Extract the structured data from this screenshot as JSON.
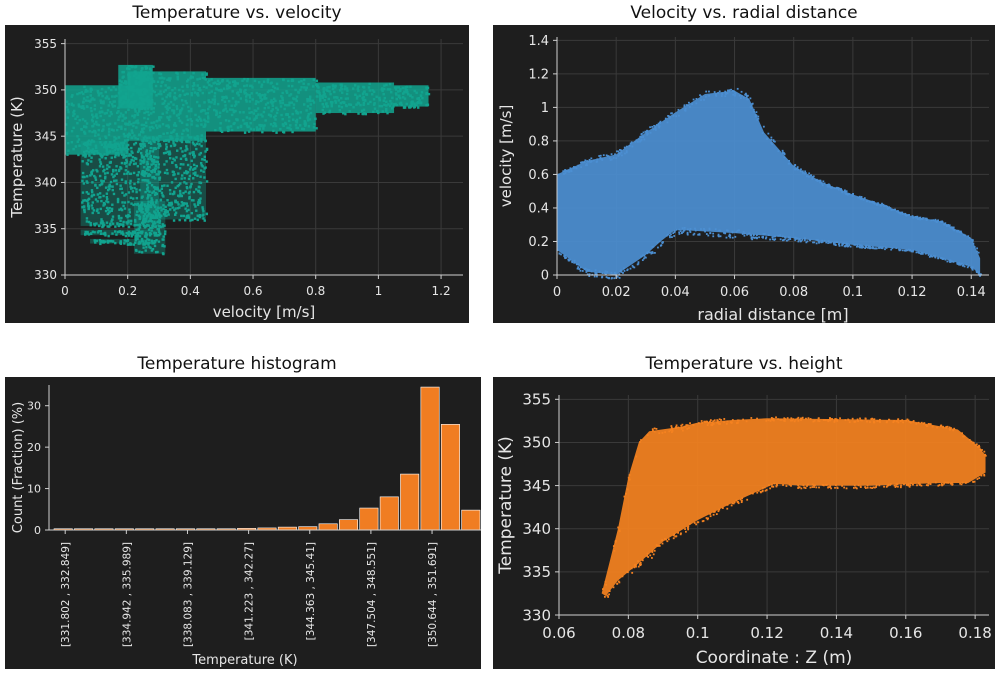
{
  "chart_data": [
    {
      "type": "scatter",
      "title": "Temperature vs. velocity",
      "xlabel": "velocity [m/s]",
      "ylabel": "Temperature (K)",
      "xlim": [
        0,
        1.27
      ],
      "ylim": [
        330,
        355.5
      ],
      "xticks": [
        0,
        0.2,
        0.4,
        0.6,
        0.8,
        1,
        1.2
      ],
      "xtick_labels": [
        "0",
        "0.2",
        "0.4",
        "0.6",
        "0.8",
        "1",
        "1.2"
      ],
      "yticks": [
        330,
        335,
        340,
        345,
        350,
        355
      ],
      "ytick_labels": [
        "330",
        "335",
        "340",
        "345",
        "350",
        "355"
      ],
      "grid": true,
      "series": [
        {
          "color": "#12a48f",
          "regions": [
            {
              "x": [
                0.0,
                0.2
              ],
              "y": [
                343,
                350.5
              ]
            },
            {
              "x": [
                0.17,
                0.28
              ],
              "y": [
                348,
                352.7
              ]
            },
            {
              "x": [
                0.2,
                0.45
              ],
              "y": [
                344.5,
                352
              ]
            },
            {
              "x": [
                0.45,
                0.8
              ],
              "y": [
                345.5,
                351.3
              ]
            },
            {
              "x": [
                0.8,
                1.05
              ],
              "y": [
                347.5,
                350.8
              ]
            },
            {
              "x": [
                1.05,
                1.16
              ],
              "y": [
                348.2,
                350.5
              ]
            },
            {
              "x": [
                0.24,
                0.45
              ],
              "y": [
                336,
                345
              ]
            },
            {
              "x": [
                0.22,
                0.32
              ],
              "y": [
                332.3,
                338
              ]
            },
            {
              "x": [
                0.05,
                0.3
              ],
              "y": [
                336,
                344.5
              ]
            },
            {
              "x": [
                0.05,
                0.3
              ],
              "y": [
                335.3,
                336
              ]
            },
            {
              "x": [
                0.05,
                0.3
              ],
              "y": [
                334.3,
                334.9
              ]
            },
            {
              "x": [
                0.08,
                0.28
              ],
              "y": [
                333.4,
                333.9
              ]
            }
          ]
        }
      ]
    },
    {
      "type": "scatter",
      "title": "Velocity vs. radial distance",
      "xlabel": "radial distance [m]",
      "ylabel": "velocity [m/s]",
      "xlim": [
        0,
        0.146
      ],
      "ylim": [
        0,
        1.42
      ],
      "xticks": [
        0,
        0.02,
        0.04,
        0.06,
        0.08,
        0.1,
        0.12,
        0.14
      ],
      "xtick_labels": [
        "0",
        "0.02",
        "0.04",
        "0.06",
        "0.08",
        "0.1",
        "0.12",
        "0.14"
      ],
      "yticks": [
        0,
        0.2,
        0.4,
        0.6,
        0.8,
        1,
        1.2,
        1.4
      ],
      "ytick_labels": [
        "0",
        "0.2",
        "0.4",
        "0.6",
        "0.8",
        "1",
        "1.2",
        "1.4"
      ],
      "grid": true,
      "series": [
        {
          "color": "#4c8fd2",
          "upper_envelope": [
            [
              0,
              0.6
            ],
            [
              0.01,
              0.68
            ],
            [
              0.02,
              0.72
            ],
            [
              0.03,
              0.85
            ],
            [
              0.04,
              0.97
            ],
            [
              0.05,
              1.08
            ],
            [
              0.06,
              1.1
            ],
            [
              0.065,
              1.05
            ],
            [
              0.07,
              0.85
            ],
            [
              0.08,
              0.65
            ],
            [
              0.09,
              0.55
            ],
            [
              0.1,
              0.48
            ],
            [
              0.11,
              0.42
            ],
            [
              0.12,
              0.35
            ],
            [
              0.13,
              0.32
            ],
            [
              0.14,
              0.22
            ],
            [
              0.143,
              0.1
            ]
          ],
          "lower_envelope": [
            [
              0,
              0.15
            ],
            [
              0.01,
              0.02
            ],
            [
              0.02,
              0.0
            ],
            [
              0.03,
              0.12
            ],
            [
              0.035,
              0.2
            ],
            [
              0.04,
              0.27
            ],
            [
              0.06,
              0.25
            ],
            [
              0.08,
              0.22
            ],
            [
              0.1,
              0.18
            ],
            [
              0.12,
              0.15
            ],
            [
              0.14,
              0.05
            ],
            [
              0.143,
              0
            ]
          ]
        }
      ]
    },
    {
      "type": "bar",
      "title": "Temperature histogram",
      "xlabel": "Temperature (K)",
      "ylabel": "Count (Fraction) (%)",
      "ylim": [
        0,
        35
      ],
      "yticks": [
        0,
        10,
        20,
        30
      ],
      "ytick_labels": [
        "0",
        "10",
        "20",
        "30"
      ],
      "category_labels": [
        "[331.802 , 332.849]",
        "[334.942 , 335.989]",
        "[338.083 , 339.129]",
        "[341.223 , 342.27]",
        "[344.363 , 345.41]",
        "[347.504 , 348.551]",
        "[350.644 , 351.691]"
      ],
      "values": [
        0.3,
        0.3,
        0.3,
        0.3,
        0.3,
        0.3,
        0.3,
        0.3,
        0.3,
        0.4,
        0.5,
        0.7,
        0.8,
        1.5,
        2.5,
        5.3,
        8.0,
        13.5,
        34.5,
        25.5,
        4.8
      ],
      "color": "#f07d22"
    },
    {
      "type": "scatter",
      "title": "Temperature vs. height",
      "xlabel": "Coordinate : Z (m)",
      "ylabel": "Temperature (K)",
      "xlim": [
        0.06,
        0.184
      ],
      "ylim": [
        330,
        355.5
      ],
      "xticks": [
        0.06,
        0.08,
        0.1,
        0.12,
        0.14,
        0.16,
        0.18
      ],
      "xtick_labels": [
        "0.06",
        "0.08",
        "0.1",
        "0.12",
        "0.14",
        "0.16",
        "0.18"
      ],
      "yticks": [
        330,
        335,
        340,
        345,
        350,
        355
      ],
      "ytick_labels": [
        "330",
        "335",
        "340",
        "345",
        "350",
        "355"
      ],
      "grid": true,
      "series": [
        {
          "color": "#f58220",
          "upper_envelope": [
            [
              0.0723,
              332.5
            ],
            [
              0.0745,
              336
            ],
            [
              0.077,
              340
            ],
            [
              0.08,
              346
            ],
            [
              0.083,
              350
            ],
            [
              0.086,
              351.3
            ],
            [
              0.095,
              351.8
            ],
            [
              0.1,
              352.3
            ],
            [
              0.11,
              352.6
            ],
            [
              0.12,
              352.8
            ],
            [
              0.14,
              352.7
            ],
            [
              0.16,
              352.6
            ],
            [
              0.175,
              351.5
            ],
            [
              0.181,
              349.5
            ],
            [
              0.183,
              348.5
            ]
          ],
          "lower_envelope": [
            [
              0.183,
              346.5
            ],
            [
              0.178,
              345.3
            ],
            [
              0.17,
              345.3
            ],
            [
              0.15,
              345
            ],
            [
              0.13,
              345
            ],
            [
              0.122,
              345.2
            ],
            [
              0.11,
              343
            ],
            [
              0.1,
              341
            ],
            [
              0.09,
              338.5
            ],
            [
              0.083,
              336
            ],
            [
              0.077,
              334
            ],
            [
              0.0735,
              332.2
            ],
            [
              0.0723,
              332.5
            ]
          ]
        }
      ]
    }
  ]
}
